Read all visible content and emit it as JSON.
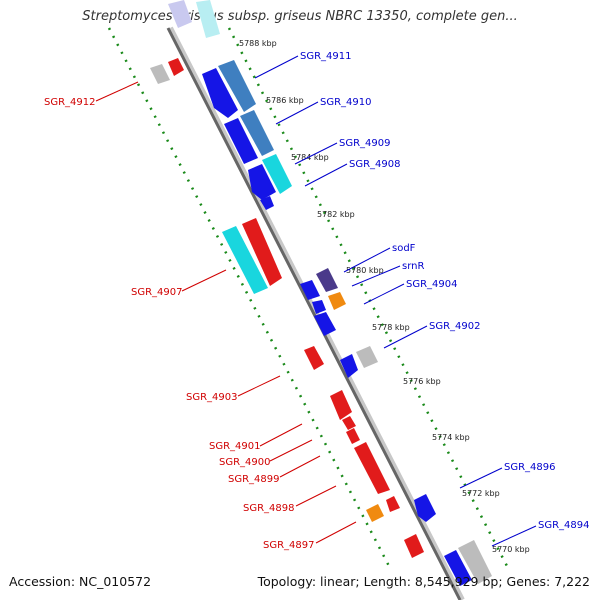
{
  "title": "Streptomyces griseus subsp. griseus NBRC 13350, complete gen...",
  "accession": "Accession: NC_010572",
  "topology_summary": "Topology: linear; Length: 8,545,929 bp; Genes: 7,222",
  "colors": {
    "blue": "#1515e6",
    "steel_blue": "#3f7fc0",
    "cyan": "#19d6de",
    "red": "#e11b1b",
    "gray": "#bcbcbc",
    "orange": "#f08a10",
    "purple": "#4a3a8a",
    "label_red": "#d00000",
    "label_blue": "#0000cc",
    "dotted_green": "#1a8a1a"
  },
  "ticks": [
    {
      "label": "5788 kbp"
    },
    {
      "label": "5786 kbp"
    },
    {
      "label": "5784 kbp"
    },
    {
      "label": "5782 kbp"
    },
    {
      "label": "5780 kbp"
    },
    {
      "label": "5778 kbp"
    },
    {
      "label": "5776 kbp"
    },
    {
      "label": "5774 kbp"
    },
    {
      "label": "5772 kbp"
    },
    {
      "label": "5770 kbp"
    }
  ],
  "labels_right": [
    {
      "text": "SGR_4911"
    },
    {
      "text": "SGR_4910"
    },
    {
      "text": "SGR_4909"
    },
    {
      "text": "SGR_4908"
    },
    {
      "text": "sodF"
    },
    {
      "text": "srnR"
    },
    {
      "text": "SGR_4904"
    },
    {
      "text": "SGR_4902"
    },
    {
      "text": "SGR_4896"
    },
    {
      "text": "SGR_4894"
    }
  ],
  "labels_left": [
    {
      "text": "SGR_4912"
    },
    {
      "text": "SGR_4907"
    },
    {
      "text": "SGR_4903"
    },
    {
      "text": "SGR_4901"
    },
    {
      "text": "SGR_4900"
    },
    {
      "text": "SGR_4899"
    },
    {
      "text": "SGR_4898"
    },
    {
      "text": "SGR_4897"
    }
  ]
}
